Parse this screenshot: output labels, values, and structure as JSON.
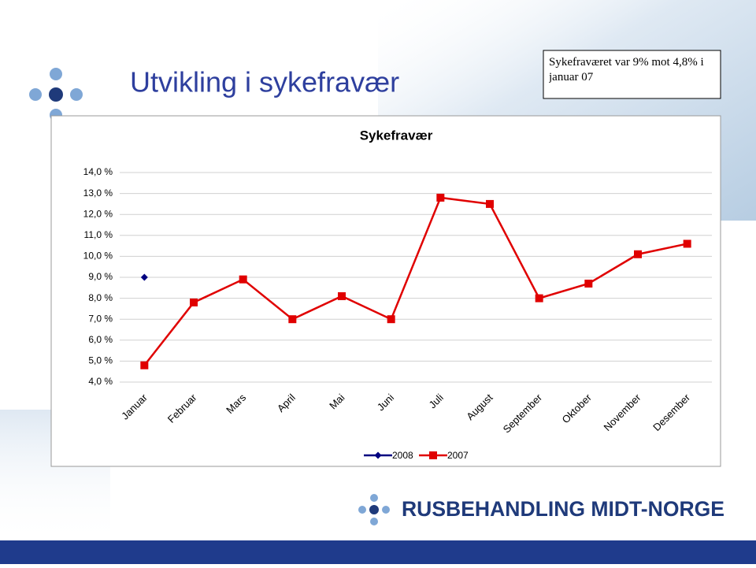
{
  "slide": {
    "title": "Utvikling i sykefravær",
    "note": "Sykefraværet var 9% mot 4,8% i januar 07",
    "logo": "RUSBEHANDLING MIDT-NORGE"
  },
  "chart_data": {
    "type": "line",
    "title": "Sykefravær",
    "categories": [
      "Januar",
      "Februar",
      "Mars",
      "April",
      "Mai",
      "Juni",
      "Juli",
      "August",
      "September",
      "Oktober",
      "November",
      "Desember"
    ],
    "series": [
      {
        "name": "2008",
        "color": "#000080",
        "marker": "diamond",
        "values": [
          9.0,
          null,
          null,
          null,
          null,
          null,
          null,
          null,
          null,
          null,
          null,
          null
        ]
      },
      {
        "name": "2007",
        "color": "#e00000",
        "marker": "square",
        "values": [
          4.8,
          7.8,
          8.9,
          7.0,
          8.1,
          7.0,
          12.8,
          12.5,
          8.0,
          8.7,
          10.1,
          10.6
        ]
      }
    ],
    "ylim": [
      4,
      14
    ],
    "yticks": [
      {
        "value": 4,
        "label": "4,0 %"
      },
      {
        "value": 5,
        "label": "5,0 %"
      },
      {
        "value": 6,
        "label": "6,0 %"
      },
      {
        "value": 7,
        "label": "7,0 %"
      },
      {
        "value": 8,
        "label": "8,0 %"
      },
      {
        "value": 9,
        "label": "9,0 %"
      },
      {
        "value": 10,
        "label": "10,0 %"
      },
      {
        "value": 11,
        "label": "11,0 %"
      },
      {
        "value": 12,
        "label": "12,0 %"
      },
      {
        "value": 13,
        "label": "13,0 %"
      },
      {
        "value": 14,
        "label": "14,0 %"
      }
    ],
    "grid": true,
    "legend": "bottom"
  }
}
